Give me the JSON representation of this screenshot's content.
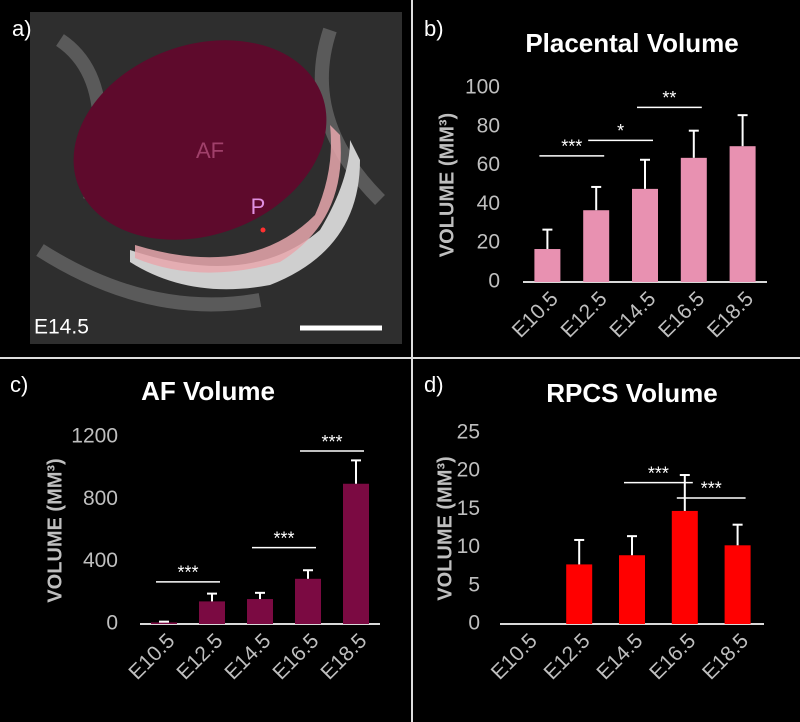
{
  "image_panel": {
    "label": "a)",
    "regions": [
      "AF",
      "P"
    ],
    "stage": "E14.5"
  },
  "chart_data": [
    {
      "type": "bar",
      "label": "b)",
      "title": "Placental Volume",
      "y_label": "VOLUME (MM³)",
      "categories": [
        "E10.5",
        "E12.5",
        "E14.5",
        "E16.5",
        "E18.5"
      ],
      "values": [
        17,
        37,
        48,
        64,
        70
      ],
      "errors": [
        10,
        12,
        15,
        14,
        16
      ],
      "color": "#e891b1",
      "ylim": [
        0,
        100
      ],
      "yticks": [
        0,
        20,
        40,
        60,
        80,
        100
      ],
      "significance": [
        {
          "from": 0,
          "to": 1,
          "y": 65,
          "label": "***"
        },
        {
          "from": 1,
          "to": 2,
          "y": 73,
          "label": "*"
        },
        {
          "from": 2,
          "to": 3,
          "y": 90,
          "label": "**"
        }
      ]
    },
    {
      "type": "bar",
      "label": "c)",
      "title": "AF Volume",
      "y_label": "VOLUME (MM³)",
      "categories": [
        "E10.5",
        "E12.5",
        "E14.5",
        "E16.5",
        "E18.5"
      ],
      "values": [
        10,
        145,
        160,
        290,
        900
      ],
      "errors": [
        5,
        50,
        40,
        55,
        150
      ],
      "color": "#7b0a42",
      "ylim": [
        0,
        1200
      ],
      "yticks": [
        0,
        400,
        800,
        1200
      ],
      "significance": [
        {
          "from": 0,
          "to": 1,
          "y": 270,
          "label": "***"
        },
        {
          "from": 2,
          "to": 3,
          "y": 490,
          "label": "***"
        },
        {
          "from": 3,
          "to": 4,
          "y": 1110,
          "label": "***"
        }
      ]
    },
    {
      "type": "bar",
      "label": "d)",
      "title": "RPCS Volume",
      "y_label": "VOLUME (MM³)",
      "categories": [
        "E10.5",
        "E12.5",
        "E14.5",
        "E16.5",
        "E18.5"
      ],
      "values": [
        0,
        7.8,
        9,
        14.8,
        10.3
      ],
      "errors": [
        0,
        3.2,
        2.5,
        4.7,
        2.7
      ],
      "color": "#ff0000",
      "ylim": [
        0,
        25
      ],
      "yticks": [
        0,
        5,
        10,
        15,
        20,
        25
      ],
      "significance": [
        {
          "from": 2,
          "to": 3,
          "y": 18.5,
          "label": "***"
        },
        {
          "from": 3,
          "to": 4,
          "y": 16.5,
          "label": "***"
        }
      ]
    }
  ]
}
